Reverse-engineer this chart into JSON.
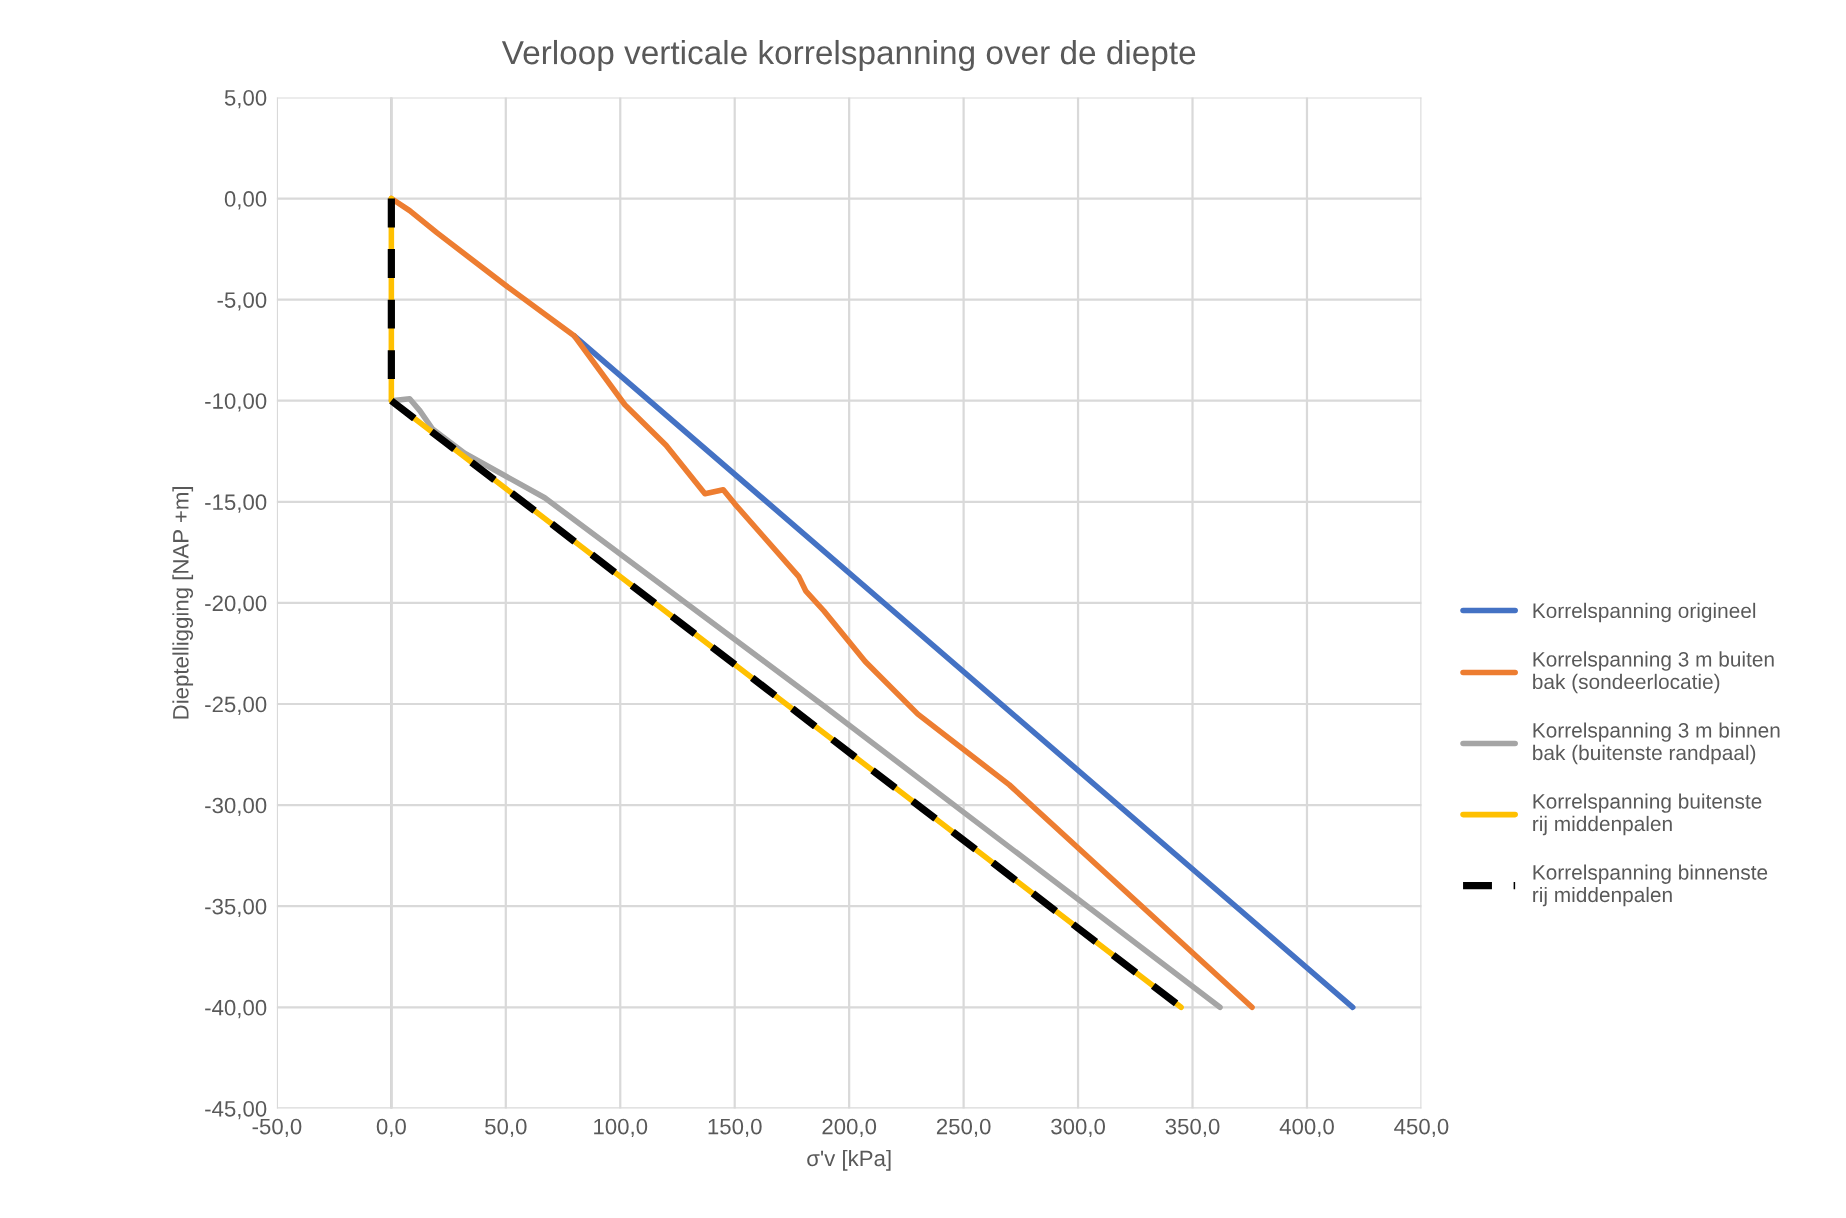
{
  "chart_data": {
    "type": "line",
    "title": "Verloop verticale korrelspanning over de diepte",
    "xlabel": "σ'v [kPa]",
    "ylabel": "Dieptelligging [NAP +m]",
    "xlim": [
      -50,
      450
    ],
    "ylim": [
      -45,
      5
    ],
    "xticks": [
      {
        "value": -50,
        "label": "-50,0"
      },
      {
        "value": 0,
        "label": "0,0"
      },
      {
        "value": 50,
        "label": "50,0"
      },
      {
        "value": 100,
        "label": "100,0"
      },
      {
        "value": 150,
        "label": "150,0"
      },
      {
        "value": 200,
        "label": "200,0"
      },
      {
        "value": 250,
        "label": "250,0"
      },
      {
        "value": 300,
        "label": "300,0"
      },
      {
        "value": 350,
        "label": "350,0"
      },
      {
        "value": 400,
        "label": "400,0"
      },
      {
        "value": 450,
        "label": "450,0"
      }
    ],
    "yticks": [
      {
        "value": 5,
        "label": "5,00"
      },
      {
        "value": 0,
        "label": "0,00"
      },
      {
        "value": -5,
        "label": "-5,00"
      },
      {
        "value": -10,
        "label": "-10,00"
      },
      {
        "value": -15,
        "label": "-15,00"
      },
      {
        "value": -20,
        "label": "-20,00"
      },
      {
        "value": -25,
        "label": "-25,00"
      },
      {
        "value": -30,
        "label": "-30,00"
      },
      {
        "value": -35,
        "label": "-35,00"
      },
      {
        "value": -40,
        "label": "-40,00"
      },
      {
        "value": -45,
        "label": "-45,00"
      }
    ],
    "grid": true,
    "legend": "right",
    "marker": "none",
    "series": [
      {
        "name": "Korrelspanning origineel",
        "color": "#4472c4",
        "x": [
          80,
          420
        ],
        "values": [
          -6.8,
          -40
        ]
      },
      {
        "name": "Korrelspanning 3 m buiten bak (sondeerlocatie)",
        "color": "#ed7d31",
        "x": [
          0,
          8,
          20,
          50,
          80,
          102,
          120,
          137,
          145,
          150,
          178,
          181,
          189,
          207,
          230,
          270,
          376
        ],
        "values": [
          0,
          -0.6,
          -1.7,
          -4.3,
          -6.8,
          -10.2,
          -12.2,
          -14.6,
          -14.4,
          -15.1,
          -18.7,
          -19.4,
          -20.4,
          -22.9,
          -25.5,
          -29,
          -40
        ]
      },
      {
        "name": "Korrelspanning 3 m binnen bak (buitenste randpaal)",
        "color": "#a5a5a5",
        "x": [
          0,
          8,
          12.5,
          18,
          32,
          67,
          189,
          362
        ],
        "values": [
          -10,
          -9.9,
          -10.5,
          -11.4,
          -12.6,
          -14.8,
          -25.1,
          -40
        ]
      },
      {
        "name": "Korrelspanning buitenste rij middenpalen",
        "color": "#ffc000",
        "x": [
          0,
          0,
          345
        ],
        "values": [
          0,
          -10,
          -40
        ]
      },
      {
        "name": "Korrelspanning binnenste rij middenpalen",
        "color": "#000000",
        "line_style": "dashed",
        "x": [
          0,
          0,
          345
        ],
        "values": [
          0,
          -10,
          -40
        ]
      }
    ]
  }
}
